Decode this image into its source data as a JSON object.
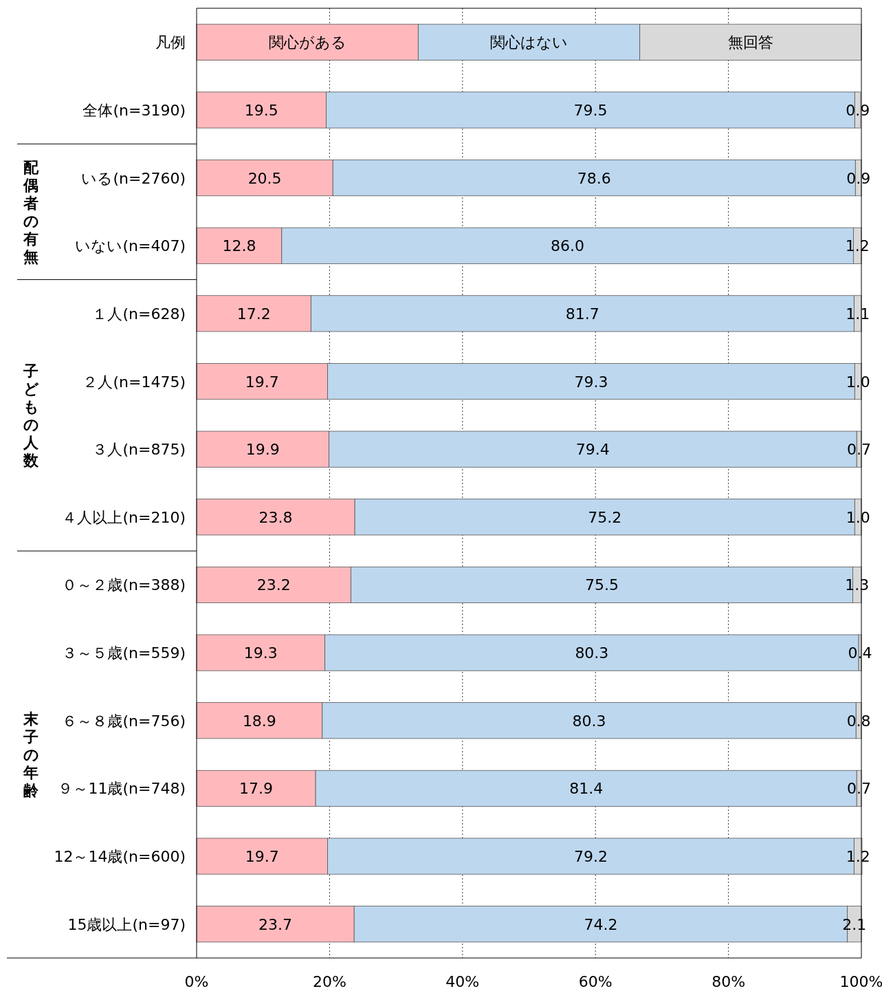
{
  "chart_data": {
    "type": "bar",
    "orientation": "horizontal",
    "stacked": true,
    "legend": "top",
    "legend_title": "凡例",
    "grid": "x",
    "categories": [
      "全体(n=3190)",
      "いる(n=2760)",
      "いない(n=407)",
      "１人(n=628)",
      "２人(n=1475)",
      "３人(n=875)",
      "４人以上(n=210)",
      "０～２歳(n=388)",
      "３～５歳(n=559)",
      "６～８歳(n=756)",
      "９～11歳(n=748)",
      "12～14歳(n=600)",
      "15歳以上(n=97)"
    ],
    "series": [
      {
        "name": "関心がある",
        "color": "#ffb9bd",
        "values": [
          19.5,
          20.5,
          12.8,
          17.2,
          19.7,
          19.9,
          23.8,
          23.2,
          19.3,
          18.9,
          17.9,
          19.7,
          23.7
        ],
        "value_labels": [
          "19.5",
          "20.5",
          "12.8",
          "17.2",
          "19.7",
          "19.9",
          "23.8",
          "23.2",
          "19.3",
          "18.9",
          "17.9",
          "19.7",
          "23.7"
        ]
      },
      {
        "name": "関心はない",
        "color": "#bdd7ee",
        "values": [
          79.5,
          78.6,
          86.0,
          81.7,
          79.3,
          79.4,
          75.2,
          75.5,
          80.3,
          80.3,
          81.4,
          79.2,
          74.2
        ],
        "value_labels": [
          "79.5",
          "78.6",
          "86.0",
          "81.7",
          "79.3",
          "79.4",
          "75.2",
          "75.5",
          "80.3",
          "80.3",
          "81.4",
          "79.2",
          "74.2"
        ]
      },
      {
        "name": "無回答",
        "color": "#d9d9d9",
        "values": [
          0.9,
          0.9,
          1.2,
          1.1,
          1.0,
          0.7,
          1.0,
          1.3,
          0.4,
          0.8,
          0.7,
          1.2,
          2.1
        ],
        "value_labels": [
          "0.9",
          "0.9",
          "1.2",
          "1.1",
          "1.0",
          "0.7",
          "1.0",
          "1.3",
          "0.4",
          "0.8",
          "0.7",
          "1.2",
          "2.1"
        ]
      }
    ],
    "xlim": [
      0,
      100
    ],
    "xticks": [
      {
        "value": 0,
        "label": "0%"
      },
      {
        "value": 20,
        "label": "20%"
      },
      {
        "value": 40,
        "label": "40%"
      },
      {
        "value": 60,
        "label": "60%"
      },
      {
        "value": 80,
        "label": "80%"
      },
      {
        "value": 100,
        "label": "100%"
      }
    ],
    "annotations": [
      "配偶者の有無",
      "子どもの人数",
      "末子の年齢"
    ]
  }
}
